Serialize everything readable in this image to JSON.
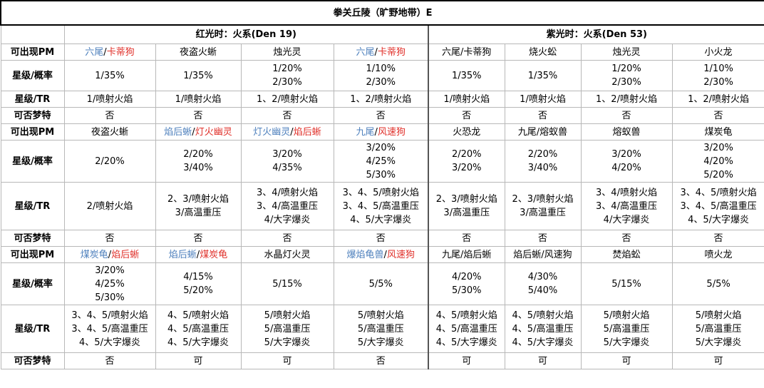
{
  "title": "拳关丘陵（旷野地带）E",
  "groups": {
    "red": "红光时：火系(Den 19)",
    "purple": "紫光时：火系(Den 53)"
  },
  "row_labels": {
    "pm": "可出现PM",
    "rate": "星级/概率",
    "tr": "星级/TR",
    "dm": "可否梦特"
  },
  "colors": {
    "blue": "#4f81bd",
    "red": "#e0302a"
  },
  "sections": [
    {
      "cells": [
        {
          "pm": [
            [
              "六尾",
              "blue"
            ],
            [
              "/",
              ""
            ],
            [
              "卡蒂狗",
              "red"
            ]
          ],
          "rate": [
            "1/35%"
          ],
          "tr": [
            "1/喷射火焰"
          ],
          "dm": "否"
        },
        {
          "pm": [
            [
              "夜盗火蜥",
              ""
            ]
          ],
          "rate": [
            "1/35%"
          ],
          "tr": [
            "1/喷射火焰"
          ],
          "dm": "否"
        },
        {
          "pm": [
            [
              "烛光灵",
              ""
            ]
          ],
          "rate": [
            "1/20%",
            "2/30%"
          ],
          "tr": [
            "1、2/喷射火焰"
          ],
          "dm": "否"
        },
        {
          "pm": [
            [
              "六尾",
              "blue"
            ],
            [
              "/",
              ""
            ],
            [
              "卡蒂狗",
              "red"
            ]
          ],
          "rate": [
            "1/10%",
            "2/30%"
          ],
          "tr": [
            "1、2/喷射火焰"
          ],
          "dm": "否"
        },
        {
          "pm": [
            [
              "六尾/卡蒂狗",
              ""
            ]
          ],
          "rate": [
            "1/35%"
          ],
          "tr": [
            "1/喷射火焰"
          ],
          "dm": "否"
        },
        {
          "pm": [
            [
              "烧火蚣",
              ""
            ]
          ],
          "rate": [
            "1/35%"
          ],
          "tr": [
            "1/喷射火焰"
          ],
          "dm": "否"
        },
        {
          "pm": [
            [
              "烛光灵",
              ""
            ]
          ],
          "rate": [
            "1/20%",
            "2/30%"
          ],
          "tr": [
            "1、2/喷射火焰"
          ],
          "dm": "否"
        },
        {
          "pm": [
            [
              "小火龙",
              ""
            ]
          ],
          "rate": [
            "1/10%",
            "2/30%"
          ],
          "tr": [
            "1、2/喷射火焰"
          ],
          "dm": "否"
        }
      ]
    },
    {
      "cells": [
        {
          "pm": [
            [
              "夜盗火蜥",
              ""
            ]
          ],
          "rate": [
            "2/20%"
          ],
          "tr": [
            "2/喷射火焰"
          ],
          "dm": "否"
        },
        {
          "pm": [
            [
              "焰后蜥",
              "blue"
            ],
            [
              "/",
              ""
            ],
            [
              "灯火幽灵",
              "red"
            ]
          ],
          "rate": [
            "2/20%",
            "3/40%"
          ],
          "tr": [
            "2、3/喷射火焰",
            "3/高温重压"
          ],
          "dm": "否"
        },
        {
          "pm": [
            [
              "灯火幽灵",
              "blue"
            ],
            [
              "/",
              ""
            ],
            [
              "焰后蜥",
              "red"
            ]
          ],
          "rate": [
            "3/20%",
            "4/35%"
          ],
          "tr": [
            "3、4/喷射火焰",
            "3、4/高温重压",
            "4/大字爆炎"
          ],
          "dm": "否"
        },
        {
          "pm": [
            [
              "九尾",
              "blue"
            ],
            [
              "/",
              ""
            ],
            [
              "风速狗",
              "red"
            ]
          ],
          "rate": [
            "3/20%",
            "4/25%",
            "5/30%"
          ],
          "tr": [
            "3、4、5/喷射火焰",
            "3、4、5/高温重压",
            "4、5/大字爆炎"
          ],
          "dm": "否"
        },
        {
          "pm": [
            [
              "火恐龙",
              ""
            ]
          ],
          "rate": [
            "2/20%",
            "3/20%"
          ],
          "tr": [
            "2、3/喷射火焰",
            "3/高温重压"
          ],
          "dm": "否"
        },
        {
          "pm": [
            [
              "九尾/熔蚁兽",
              ""
            ]
          ],
          "rate": [
            "2/20%",
            "3/40%"
          ],
          "tr": [
            "2、3/喷射火焰",
            "3/高温重压"
          ],
          "dm": "否"
        },
        {
          "pm": [
            [
              "熔蚁兽",
              ""
            ]
          ],
          "rate": [
            "3/20%",
            "4/20%"
          ],
          "tr": [
            "3、4/喷射火焰",
            "3、4/高温重压",
            "4/大字爆炎"
          ],
          "dm": "否"
        },
        {
          "pm": [
            [
              "煤炭龟",
              ""
            ]
          ],
          "rate": [
            "3/20%",
            "4/20%",
            "5/20%"
          ],
          "tr": [
            "3、4、5/喷射火焰",
            "3、4、5/高温重压",
            "4、5/大字爆炎"
          ],
          "dm": "否"
        }
      ]
    },
    {
      "cells": [
        {
          "pm": [
            [
              "煤炭龟",
              "blue"
            ],
            [
              "/",
              ""
            ],
            [
              "焰后蜥",
              "red"
            ]
          ],
          "rate": [
            "3/20%",
            "4/25%",
            "5/30%"
          ],
          "tr": [
            "3、4、5/喷射火焰",
            "3、4、5/高温重压",
            "4、5/大字爆炎"
          ],
          "dm": "否"
        },
        {
          "pm": [
            [
              "焰后蜥",
              "blue"
            ],
            [
              "/",
              ""
            ],
            [
              "煤炭龟",
              "red"
            ]
          ],
          "rate": [
            "4/15%",
            "5/20%"
          ],
          "tr": [
            "4、5/喷射火焰",
            "4、5/高温重压",
            "4、5/大字爆炎"
          ],
          "dm": "可"
        },
        {
          "pm": [
            [
              "水晶灯火灵",
              ""
            ]
          ],
          "rate": [
            "5/15%"
          ],
          "tr": [
            "5/喷射火焰",
            "5/高温重压",
            "5/大字爆炎"
          ],
          "dm": "可"
        },
        {
          "pm": [
            [
              "爆焰龟兽",
              "blue"
            ],
            [
              "/",
              ""
            ],
            [
              "风速狗",
              "red"
            ]
          ],
          "rate": [
            "5/5%"
          ],
          "tr": [
            "5/喷射火焰",
            "5/高温重压",
            "5/大字爆炎"
          ],
          "dm": "否"
        },
        {
          "pm": [
            [
              "九尾/焰后蜥",
              ""
            ]
          ],
          "rate": [
            "4/20%",
            "5/30%"
          ],
          "tr": [
            "4、5/喷射火焰",
            "4、5/高温重压",
            "4、5/大字爆炎"
          ],
          "dm": "可"
        },
        {
          "pm": [
            [
              "焰后蜥/风速狗",
              ""
            ]
          ],
          "rate": [
            "4/30%",
            "5/40%"
          ],
          "tr": [
            "4、5/喷射火焰",
            "4、5/高温重压",
            "4、5/大字爆炎"
          ],
          "dm": "可"
        },
        {
          "pm": [
            [
              "焚焰蚣",
              ""
            ]
          ],
          "rate": [
            "5/15%"
          ],
          "tr": [
            "5/喷射火焰",
            "5/高温重压",
            "5/大字爆炎"
          ],
          "dm": "可"
        },
        {
          "pm": [
            [
              "喷火龙",
              ""
            ]
          ],
          "rate": [
            "5/5%"
          ],
          "tr": [
            "5/喷射火焰",
            "5/高温重压",
            "5/大字爆炎"
          ],
          "dm": "可"
        }
      ]
    }
  ]
}
